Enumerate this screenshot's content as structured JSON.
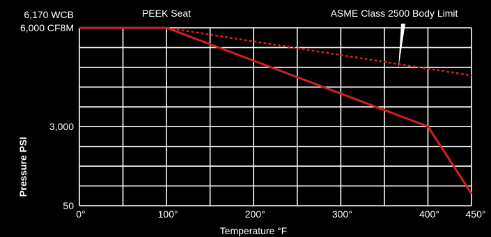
{
  "chart_data": {
    "type": "line",
    "title": "",
    "xlabel": "Temperature °F",
    "ylabel": "Pressure PSI",
    "x_ticks": [
      {
        "value": 0,
        "label": "0°"
      },
      {
        "value": 100,
        "label": "100°"
      },
      {
        "value": 200,
        "label": "200°"
      },
      {
        "value": 300,
        "label": "300°"
      },
      {
        "value": 400,
        "label": "400°"
      },
      {
        "value": 450,
        "label": "450°"
      }
    ],
    "y_ticks": [
      {
        "value": 6000,
        "label": "6,000 CF8M"
      },
      {
        "value": 3000,
        "label": "3,000"
      },
      {
        "value": 50,
        "label": "50"
      }
    ],
    "y_top_label": "6,170 WCB",
    "xlim": [
      0,
      450
    ],
    "ylim": [
      50,
      6000
    ],
    "grid": true,
    "series": [
      {
        "name": "PEEK Seat",
        "style": "solid",
        "color": "#d42020",
        "points": [
          {
            "x": 0,
            "y": 6000
          },
          {
            "x": 100,
            "y": 6000
          },
          {
            "x": 400,
            "y": 3000
          },
          {
            "x": 450,
            "y": 500
          }
        ]
      },
      {
        "name": "ASME Class 2500 Body Limit",
        "style": "dashed",
        "color": "#d42020",
        "points": [
          {
            "x": 0,
            "y": 6000
          },
          {
            "x": 100,
            "y": 6000
          },
          {
            "x": 450,
            "y": 4550
          }
        ]
      }
    ],
    "annotations": [
      {
        "text": "PEEK Seat",
        "series": 0
      },
      {
        "text": "ASME Class 2500 Body Limit",
        "series": 1
      }
    ],
    "colors": {
      "background": "#000000",
      "grid": "#ffffff",
      "text": "#ffffff",
      "series": "#d42020"
    }
  }
}
